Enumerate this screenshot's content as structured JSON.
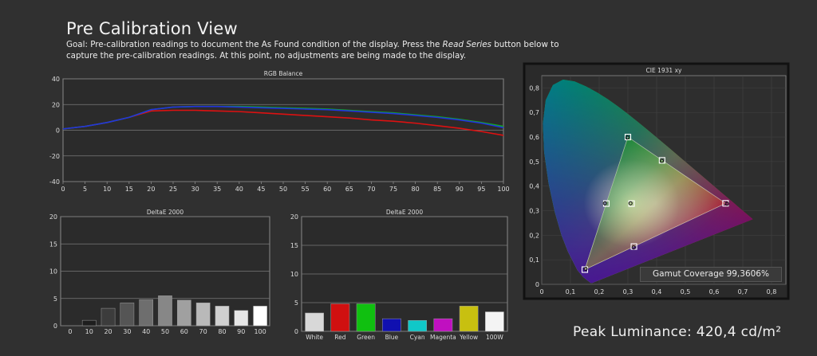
{
  "page": {
    "title": "Pre Calibration View",
    "goal_prefix": "Goal: Pre-calibration readings to document the As Found condition of the display. Press the ",
    "goal_emphasis": "Read Series",
    "goal_suffix": " button below to capture the pre-calibration readings. At this point, no adjustments are being made to the display.",
    "peak_luminance": "Peak Luminance: 420,4 cd/m²",
    "gamut_coverage": "Gamut Coverage 99,3606%"
  },
  "chart_data": [
    {
      "id": "rgb-balance",
      "type": "line",
      "title": "RGB Balance",
      "x": [
        0,
        5,
        10,
        15,
        20,
        25,
        30,
        35,
        40,
        45,
        50,
        55,
        60,
        65,
        70,
        75,
        80,
        85,
        90,
        95,
        100
      ],
      "ylim": [
        -40,
        40
      ],
      "yticks": [
        40,
        20,
        0,
        -20,
        -40
      ],
      "xticks": [
        "0",
        "5",
        "10",
        "15",
        "20",
        "25",
        "30",
        "35",
        "40",
        "45",
        "50",
        "55",
        "60",
        "65",
        "70",
        "75",
        "80",
        "85",
        "90",
        "95",
        "100"
      ],
      "series": [
        {
          "color": "#dd1111",
          "values": [
            1,
            3,
            6,
            10,
            15,
            15.5,
            15.5,
            15,
            14.5,
            13.5,
            12.5,
            11.5,
            10.5,
            9.5,
            8,
            7,
            5.5,
            3.5,
            1.5,
            -1,
            -4
          ]
        },
        {
          "color": "#11aa22",
          "values": [
            1,
            3,
            6,
            10,
            16,
            18,
            18.5,
            18.5,
            18.5,
            18,
            17.5,
            17,
            16.5,
            15.5,
            14.5,
            13.5,
            12,
            10.5,
            8.5,
            6,
            3
          ]
        },
        {
          "color": "#2233dd",
          "values": [
            1,
            3,
            6,
            10,
            16,
            18,
            18.5,
            18.5,
            18,
            17.5,
            17,
            16.5,
            16,
            15,
            14,
            13,
            11.5,
            10,
            8,
            5.5,
            2
          ]
        }
      ]
    },
    {
      "id": "deltae-grayscale",
      "type": "bar",
      "title": "DeltaE 2000",
      "categories": [
        "0",
        "10",
        "20",
        "30",
        "40",
        "50",
        "60",
        "70",
        "80",
        "90",
        "100"
      ],
      "values": [
        0,
        1.0,
        3.2,
        4.2,
        4.8,
        5.5,
        4.7,
        4.2,
        3.6,
        2.8,
        3.6
      ],
      "colors": [
        "#000000",
        "#1e1e1e",
        "#3c3c3c",
        "#555555",
        "#6e6e6e",
        "#878787",
        "#a0a0a0",
        "#b9b9b9",
        "#d0d0d0",
        "#e6e6e6",
        "#ffffff"
      ],
      "ylim": [
        0,
        20
      ],
      "yticks": [
        20,
        15,
        10,
        5,
        0
      ]
    },
    {
      "id": "deltae-colors",
      "type": "bar",
      "title": "DeltaE 2000",
      "categories": [
        "White",
        "Red",
        "Green",
        "Blue",
        "Cyan",
        "Magenta",
        "Yellow",
        "100W"
      ],
      "values": [
        3.2,
        4.8,
        4.8,
        2.2,
        1.9,
        2.2,
        4.4,
        3.4
      ],
      "colors": [
        "#d8d8d8",
        "#d01010",
        "#10c010",
        "#1010b0",
        "#10c8c8",
        "#c010c0",
        "#c8c010",
        "#f4f4f4"
      ],
      "ylim": [
        0,
        20
      ],
      "yticks": [
        20,
        15,
        10,
        5,
        0
      ]
    },
    {
      "id": "cie-1931",
      "type": "scatter",
      "title": "CIE 1931 xy",
      "xlim": [
        0,
        0.85
      ],
      "ylim": [
        0,
        0.85
      ],
      "xticks": [
        "0",
        "0,1",
        "0,2",
        "0,3",
        "0,4",
        "0,5",
        "0,6",
        "0,7",
        "0,8"
      ],
      "yticks": [
        "0,8",
        "0,7",
        "0,6",
        "0,5",
        "0,4",
        "0,3",
        "0,2",
        "0,1",
        "0"
      ],
      "gamut_triangle": [
        [
          0.64,
          0.33
        ],
        [
          0.3,
          0.6
        ],
        [
          0.15,
          0.06
        ]
      ],
      "targets": [
        {
          "x": 0.64,
          "y": 0.33
        },
        {
          "x": 0.3,
          "y": 0.6
        },
        {
          "x": 0.15,
          "y": 0.06
        },
        {
          "x": 0.225,
          "y": 0.329
        },
        {
          "x": 0.321,
          "y": 0.154
        },
        {
          "x": 0.419,
          "y": 0.505
        },
        {
          "x": 0.3127,
          "y": 0.329
        }
      ],
      "measured": [
        {
          "x": 0.645,
          "y": 0.328
        },
        {
          "x": 0.298,
          "y": 0.598
        },
        {
          "x": 0.153,
          "y": 0.063
        },
        {
          "x": 0.22,
          "y": 0.33
        },
        {
          "x": 0.32,
          "y": 0.15
        },
        {
          "x": 0.418,
          "y": 0.503
        },
        {
          "x": 0.309,
          "y": 0.33
        }
      ]
    }
  ]
}
